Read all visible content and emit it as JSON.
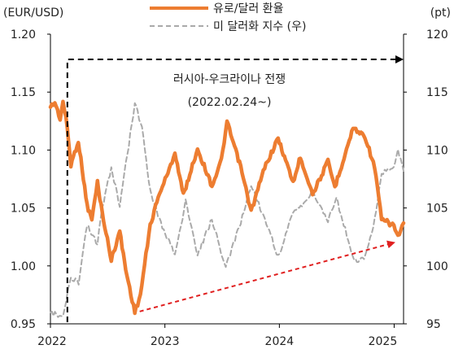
{
  "chart_data": {
    "type": "line",
    "title": "",
    "left_unit": "(EUR/USD)",
    "right_unit": "(pt)",
    "x_ticks": [
      "2022",
      "2023",
      "2024",
      "2025"
    ],
    "xlim": [
      "2022-01-01",
      "2025-01-31"
    ],
    "y_left_ticks": [
      "1.20",
      "1.15",
      "1.10",
      "1.05",
      "1.00",
      "0.95"
    ],
    "y_left_range": [
      0.95,
      1.2
    ],
    "y_right_ticks": [
      "120",
      "115",
      "110",
      "105",
      "100",
      "95"
    ],
    "y_right_range": [
      95,
      120
    ],
    "grid": false,
    "legend_position": "top-center",
    "annotations": {
      "event_label": "러시아-우크라이나 전쟁",
      "event_date": "(2022.02.24~)"
    },
    "series": [
      {
        "name": "유로/달러 환율",
        "axis": "left",
        "color": "#ED7D31",
        "style": "solid",
        "points": [
          [
            "2022-01-01",
            1.137
          ],
          [
            "2022-01-15",
            1.141
          ],
          [
            "2022-02-01",
            1.127
          ],
          [
            "2022-02-10",
            1.142
          ],
          [
            "2022-02-24",
            1.119
          ],
          [
            "2022-03-07",
            1.087
          ],
          [
            "2022-03-31",
            1.108
          ],
          [
            "2022-04-28",
            1.052
          ],
          [
            "2022-05-13",
            1.04
          ],
          [
            "2022-05-31",
            1.072
          ],
          [
            "2022-06-15",
            1.046
          ],
          [
            "2022-07-14",
            1.005
          ],
          [
            "2022-08-10",
            1.03
          ],
          [
            "2022-08-29",
            0.997
          ],
          [
            "2022-09-27",
            0.96
          ],
          [
            "2022-10-15",
            0.975
          ],
          [
            "2022-11-15",
            1.035
          ],
          [
            "2022-12-15",
            1.063
          ],
          [
            "2023-01-15",
            1.083
          ],
          [
            "2023-02-02",
            1.098
          ],
          [
            "2023-03-01",
            1.061
          ],
          [
            "2023-04-15",
            1.101
          ],
          [
            "2023-05-31",
            1.069
          ],
          [
            "2023-06-30",
            1.091
          ],
          [
            "2023-07-18",
            1.124
          ],
          [
            "2023-08-31",
            1.085
          ],
          [
            "2023-10-03",
            1.047
          ],
          [
            "2023-11-15",
            1.085
          ],
          [
            "2023-12-28",
            1.11
          ],
          [
            "2024-02-14",
            1.072
          ],
          [
            "2024-03-08",
            1.094
          ],
          [
            "2024-04-16",
            1.062
          ],
          [
            "2024-06-04",
            1.09
          ],
          [
            "2024-06-26",
            1.068
          ],
          [
            "2024-08-23",
            1.119
          ],
          [
            "2024-09-30",
            1.112
          ],
          [
            "2024-10-31",
            1.085
          ],
          [
            "2024-11-22",
            1.04
          ],
          [
            "2024-12-31",
            1.035
          ],
          [
            "2025-01-13",
            1.025
          ],
          [
            "2025-01-31",
            1.037
          ]
        ]
      },
      {
        "name": "미 달러화 지수 (우)",
        "axis": "right",
        "color": "#AAAAAA",
        "style": "dashed",
        "points": [
          [
            "2022-01-01",
            96.0
          ],
          [
            "2022-01-20",
            95.8
          ],
          [
            "2022-02-10",
            95.5
          ],
          [
            "2022-03-07",
            99.0
          ],
          [
            "2022-04-01",
            98.5
          ],
          [
            "2022-04-28",
            103.5
          ],
          [
            "2022-05-31",
            101.8
          ],
          [
            "2022-06-15",
            105.0
          ],
          [
            "2022-07-14",
            108.5
          ],
          [
            "2022-08-10",
            105.2
          ],
          [
            "2022-09-27",
            114.0
          ],
          [
            "2022-10-20",
            112.0
          ],
          [
            "2022-11-15",
            106.5
          ],
          [
            "2022-12-15",
            104.0
          ],
          [
            "2023-01-15",
            102.0
          ],
          [
            "2023-02-02",
            101.0
          ],
          [
            "2023-03-08",
            105.5
          ],
          [
            "2023-04-15",
            101.0
          ],
          [
            "2023-05-31",
            104.0
          ],
          [
            "2023-07-14",
            99.8
          ],
          [
            "2023-08-31",
            103.8
          ],
          [
            "2023-10-03",
            107.0
          ],
          [
            "2023-11-30",
            103.0
          ],
          [
            "2023-12-28",
            100.8
          ],
          [
            "2024-02-14",
            104.5
          ],
          [
            "2024-04-16",
            106.3
          ],
          [
            "2024-06-04",
            104.0
          ],
          [
            "2024-07-01",
            105.8
          ],
          [
            "2024-08-26",
            100.5
          ],
          [
            "2024-09-27",
            100.5
          ],
          [
            "2024-10-31",
            104.0
          ],
          [
            "2024-11-22",
            108.0
          ],
          [
            "2024-12-31",
            108.5
          ],
          [
            "2025-01-13",
            110.0
          ],
          [
            "2025-01-31",
            108.2
          ]
        ]
      }
    ]
  }
}
